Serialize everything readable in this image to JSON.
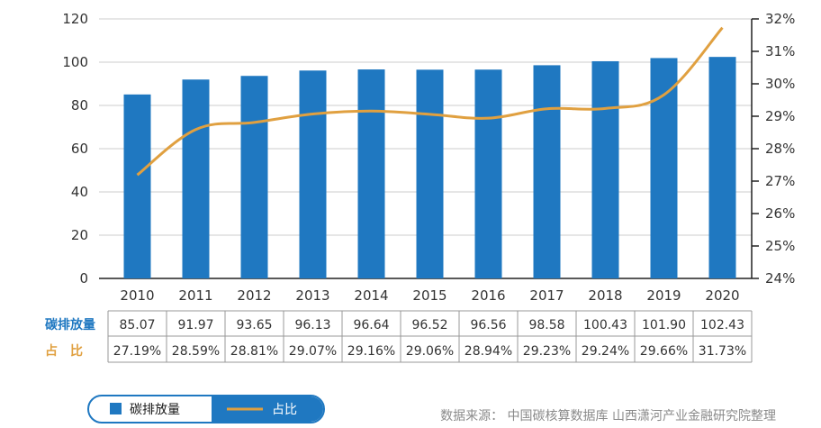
{
  "chart_data": {
    "type": "bar",
    "categories": [
      "2010",
      "2011",
      "2012",
      "2013",
      "2014",
      "2015",
      "2016",
      "2017",
      "2018",
      "2019",
      "2020"
    ],
    "series": [
      {
        "name": "碳排放量",
        "type": "bar",
        "axis": "left",
        "values": [
          85.07,
          91.97,
          93.65,
          96.13,
          96.64,
          96.52,
          96.56,
          98.58,
          100.43,
          101.9,
          102.43
        ]
      },
      {
        "name": "占比",
        "type": "line",
        "axis": "right",
        "values": [
          27.19,
          28.59,
          28.81,
          29.07,
          29.16,
          29.06,
          28.94,
          29.23,
          29.24,
          29.66,
          31.73
        ]
      }
    ],
    "left_axis": {
      "ylim": [
        0,
        120
      ],
      "ticks": [
        "0",
        "20",
        "40",
        "60",
        "80",
        "100",
        "120"
      ]
    },
    "right_axis": {
      "ylim": [
        24,
        32
      ],
      "ticks": [
        "24%",
        "25%",
        "26%",
        "27%",
        "28%",
        "29%",
        "30%",
        "31%",
        "32%"
      ]
    },
    "grid": "horizontal",
    "table": {
      "row1_label": "碳排放量",
      "row2_label": "占　比",
      "row1_values": [
        "85.07",
        "91.97",
        "93.65",
        "96.13",
        "96.64",
        "96.52",
        "96.56",
        "98.58",
        "100.43",
        "101.90",
        "102.43"
      ],
      "row2_values": [
        "27.19%",
        "28.59%",
        "28.81%",
        "29.07%",
        "29.16%",
        "29.06%",
        "28.94%",
        "29.23%",
        "29.24%",
        "29.66%",
        "31.73%"
      ]
    },
    "legend": {
      "bar_label": "碳排放量",
      "line_label": "占比",
      "placement": "bottom-left"
    },
    "source": "数据来源：  中国碳核算数据库  山西潇河产业金融研究院整理"
  },
  "colors": {
    "bar": "#1f78c1",
    "line": "#e0a040",
    "grid": "#cccccc",
    "row1_label": "#1f78c1",
    "row2_label": "#e0a040",
    "legend_border": "#1f78c1",
    "legend_fill": "#1f78c1"
  }
}
